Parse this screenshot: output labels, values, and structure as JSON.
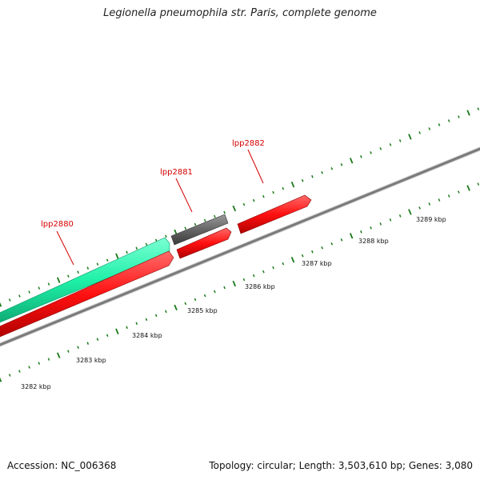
{
  "title": "Legionella pneumophila str. Paris, complete genome",
  "footer": {
    "accession": "Accession: NC_006368",
    "summary": "Topology: circular; Length: 3,503,610 bp; Genes: 3,080"
  },
  "colors": {
    "forward_gene": "#1ef0a8",
    "reverse_gene": "#ff1a1a",
    "gray_gene": "#6a6a6a",
    "backbone": "#8a8a8a",
    "ticks": "#1a7a1a",
    "label": "#d40000"
  },
  "genes": [
    {
      "name": "lpp2880",
      "label": "lpp2880"
    },
    {
      "name": "lpp2881",
      "label": "lpp2881"
    },
    {
      "name": "lpp2882",
      "label": "lpp2882"
    }
  ],
  "scale_labels": [
    "3282 kbp",
    "3283 kbp",
    "3284 kbp",
    "3285 kbp",
    "3286 kbp",
    "3287 kbp",
    "3288 kbp",
    "3289 kbp"
  ]
}
